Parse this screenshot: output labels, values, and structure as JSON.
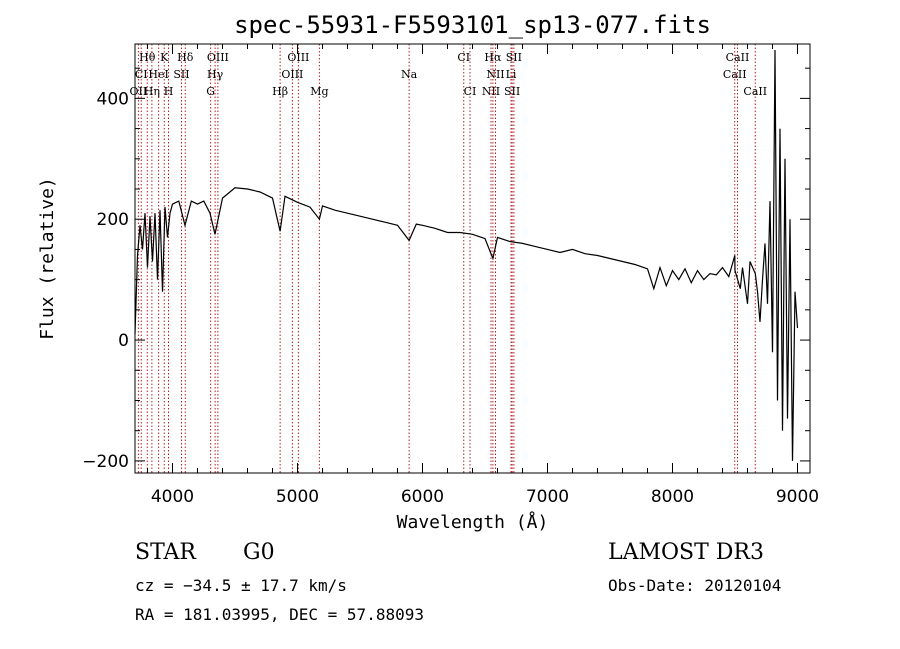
{
  "chart_data": {
    "type": "line",
    "title": "spec-55931-F5593101_sp13-077.fits",
    "xlabel": "Wavelength (Å)",
    "ylabel": "Flux (relative)",
    "xlim": [
      3700,
      9100
    ],
    "ylim": [
      -220,
      490
    ],
    "x_ticks": [
      4000,
      5000,
      6000,
      7000,
      8000,
      9000
    ],
    "x_tick_labels": [
      "4000",
      "5000",
      "6000",
      "7000",
      "8000",
      "9000"
    ],
    "y_ticks": [
      -200,
      0,
      200,
      400
    ],
    "y_tick_labels": [
      "−200",
      "0",
      "200",
      "400"
    ],
    "series": [
      {
        "name": "flux",
        "color": "#000000",
        "x": [
          3700,
          3720,
          3740,
          3760,
          3780,
          3800,
          3820,
          3840,
          3860,
          3880,
          3900,
          3920,
          3940,
          3960,
          3980,
          4000,
          4050,
          4100,
          4150,
          4200,
          4250,
          4300,
          4340,
          4400,
          4500,
          4600,
          4700,
          4800,
          4861,
          4900,
          5000,
          5100,
          5175,
          5200,
          5300,
          5400,
          5500,
          5600,
          5700,
          5800,
          5893,
          5950,
          6000,
          6100,
          6200,
          6300,
          6400,
          6500,
          6563,
          6600,
          6700,
          6800,
          6900,
          7000,
          7100,
          7200,
          7300,
          7400,
          7500,
          7600,
          7700,
          7800,
          7850,
          7900,
          7950,
          8000,
          8050,
          8100,
          8150,
          8200,
          8250,
          8300,
          8350,
          8400,
          8450,
          8498,
          8500,
          8542,
          8560,
          8600,
          8620,
          8662,
          8680,
          8700,
          8720,
          8740,
          8760,
          8780,
          8800,
          8820,
          8840,
          8860,
          8880,
          8900,
          8920,
          8940,
          8960,
          8980,
          9000
        ],
        "y": [
          10,
          140,
          190,
          150,
          210,
          120,
          205,
          130,
          210,
          100,
          215,
          80,
          220,
          170,
          210,
          225,
          230,
          190,
          230,
          225,
          230,
          210,
          175,
          235,
          252,
          250,
          245,
          235,
          180,
          238,
          228,
          220,
          200,
          222,
          215,
          210,
          205,
          200,
          195,
          190,
          165,
          192,
          190,
          185,
          178,
          178,
          175,
          168,
          135,
          170,
          163,
          160,
          155,
          150,
          145,
          150,
          143,
          140,
          135,
          130,
          125,
          118,
          85,
          120,
          90,
          115,
          100,
          118,
          95,
          115,
          100,
          110,
          108,
          120,
          105,
          140,
          115,
          85,
          120,
          60,
          130,
          110,
          80,
          30,
          100,
          160,
          60,
          230,
          -20,
          480,
          -100,
          350,
          -150,
          300,
          -130,
          200,
          -200,
          80,
          20
        ]
      }
    ],
    "line_markers": [
      {
        "name": "Hθ",
        "x": 3798,
        "row": 0
      },
      {
        "name": "K",
        "x": 3934,
        "row": 0
      },
      {
        "name": "Hδ",
        "x": 4102,
        "row": 0
      },
      {
        "name": "OIII",
        "x": 4363,
        "row": 0
      },
      {
        "name": "OIII",
        "x": 5007,
        "row": 0
      },
      {
        "name": "CI",
        "x": 6330,
        "row": 0
      },
      {
        "name": "Hα",
        "x": 6563,
        "row": 0
      },
      {
        "name": "SII",
        "x": 6731,
        "row": 0
      },
      {
        "name": "CaII",
        "x": 8520,
        "row": 0
      },
      {
        "name": "CI",
        "x": 3750,
        "row": 1
      },
      {
        "name": "HeI",
        "x": 3889,
        "row": 1
      },
      {
        "name": "SII",
        "x": 4072,
        "row": 1
      },
      {
        "name": "Hγ",
        "x": 4341,
        "row": 1
      },
      {
        "name": "OIII",
        "x": 4959,
        "row": 1
      },
      {
        "name": "Na",
        "x": 5893,
        "row": 1
      },
      {
        "name": "NII",
        "x": 6584,
        "row": 1
      },
      {
        "name": "Li",
        "x": 6708,
        "row": 1
      },
      {
        "name": "CaII",
        "x": 8498,
        "row": 1
      },
      {
        "name": "OII",
        "x": 3727,
        "row": 2
      },
      {
        "name": "Hη",
        "x": 3835,
        "row": 2
      },
      {
        "name": "H",
        "x": 3968,
        "row": 2
      },
      {
        "name": "G",
        "x": 4305,
        "row": 2
      },
      {
        "name": "Hβ",
        "x": 4861,
        "row": 2
      },
      {
        "name": "Mg",
        "x": 5175,
        "row": 2
      },
      {
        "name": "CI",
        "x": 6380,
        "row": 2
      },
      {
        "name": "NII",
        "x": 6548,
        "row": 2
      },
      {
        "name": "SII",
        "x": 6717,
        "row": 2
      },
      {
        "name": "CaII",
        "x": 8662,
        "row": 2
      }
    ],
    "marker_color": "#b22222"
  },
  "info": {
    "object_class": "STAR",
    "subclass": "G0",
    "survey": "LAMOST DR3",
    "redshift": "cz = −34.5 ± 17.7 km/s",
    "obs_date": "Obs-Date: 20120104",
    "coords": "RA = 181.03995, DEC =  57.88093"
  }
}
